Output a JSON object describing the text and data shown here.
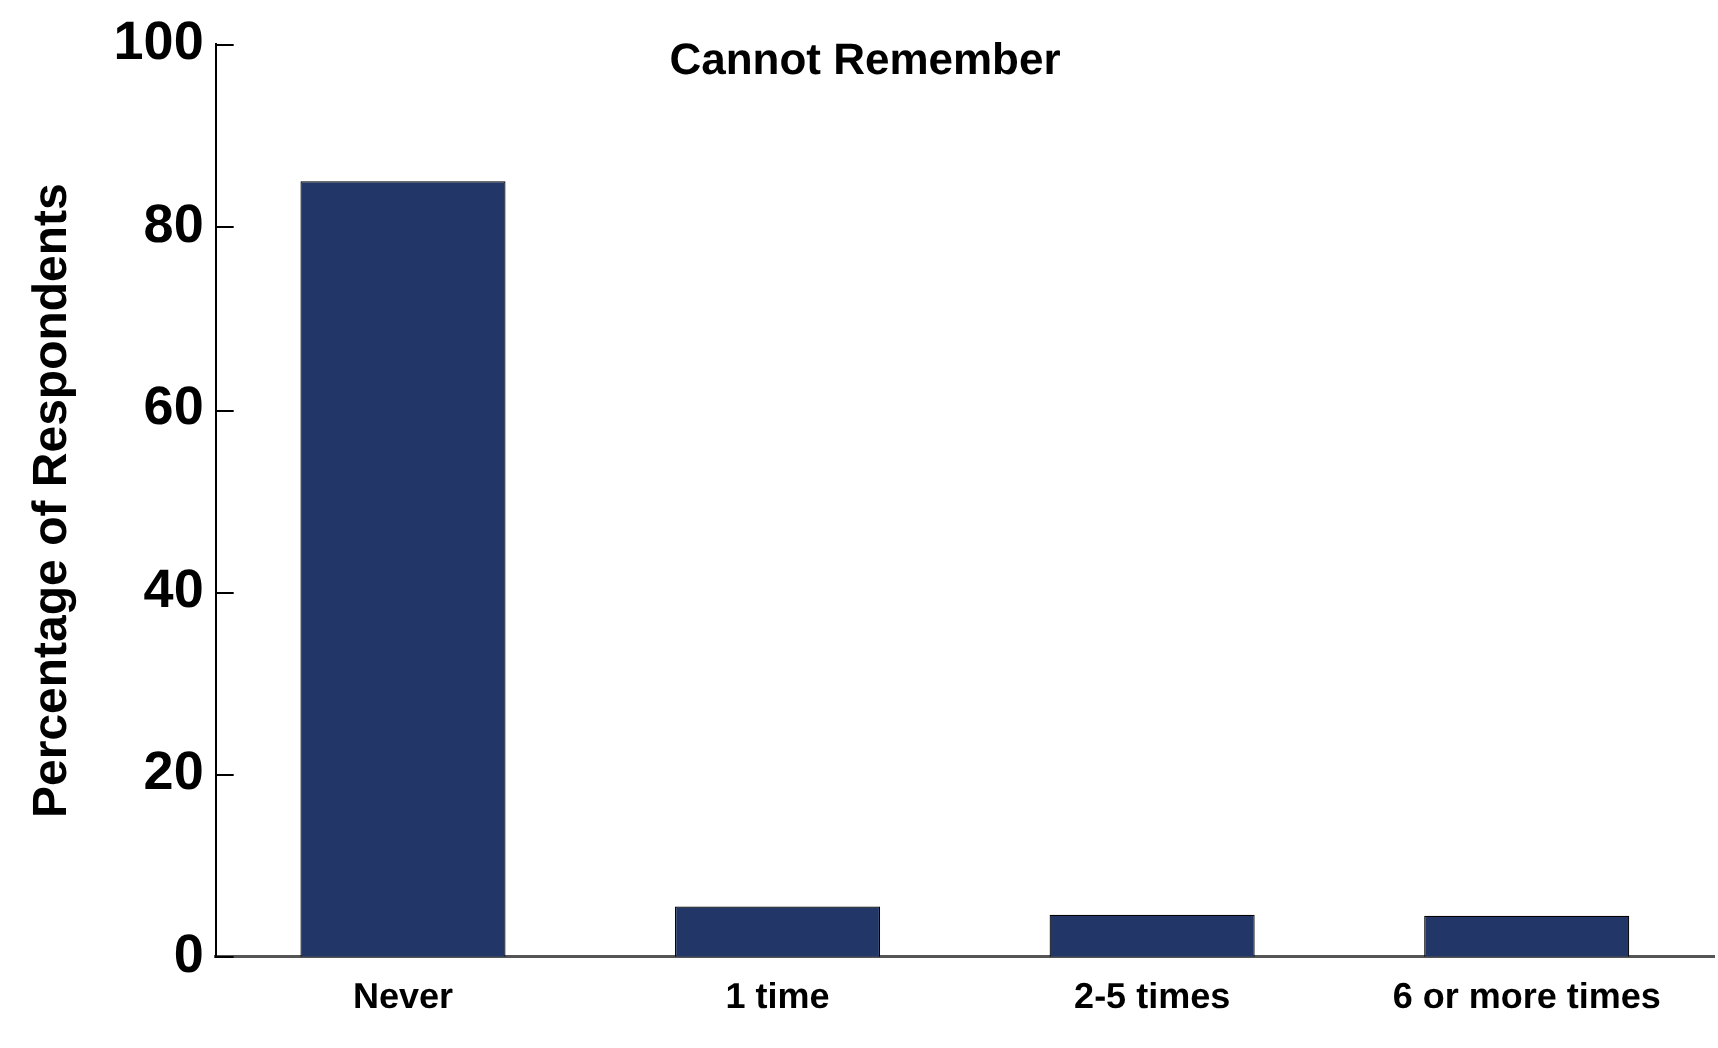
{
  "chart_data": {
    "type": "bar",
    "title": "Cannot Remember",
    "ylabel": "Percentage of Respondents",
    "categories": [
      "Never",
      "1 time",
      "2-5 times",
      "6 or more times"
    ],
    "values": [
      85,
      5.5,
      4.6,
      4.5
    ],
    "color": "#223767",
    "ylim": [
      0,
      100
    ],
    "yticks": [
      0,
      20,
      40,
      60,
      80,
      100
    ],
    "grid": false,
    "legend": false
  }
}
